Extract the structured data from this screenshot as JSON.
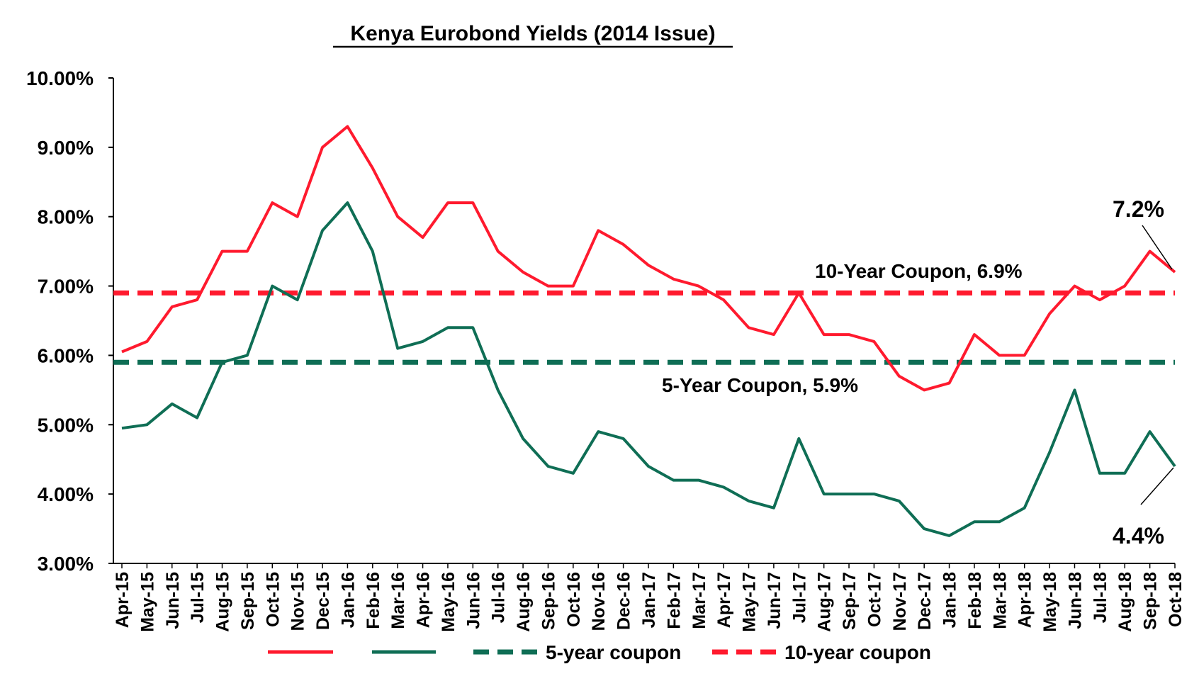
{
  "chart_data": {
    "type": "line",
    "title": "Kenya Eurobond Yields (2014 Issue)",
    "xlabel": "",
    "ylabel": "",
    "ylim": [
      3.0,
      10.0
    ],
    "yticks": [
      "3.00%",
      "4.00%",
      "5.00%",
      "6.00%",
      "7.00%",
      "8.00%",
      "9.00%",
      "10.00%"
    ],
    "ytick_values": [
      3,
      4,
      5,
      6,
      7,
      8,
      9,
      10
    ],
    "x_tick_labels": [
      "Apr-15",
      "May-15",
      "Jun-15",
      "Jul-15",
      "Aug-15",
      "Sep-15",
      "Oct-15",
      "Nov-15",
      "Dec-15",
      "Jan-16",
      "Feb-16",
      "Mar-16",
      "Apr-16",
      "May-16",
      "Jun-16",
      "Jul-16",
      "Aug-16",
      "Sep-16",
      "Oct-16",
      "Nov-16",
      "Dec-16",
      "Jan-17",
      "Feb-17",
      "Mar-17",
      "Apr-17",
      "May-17",
      "Jun-17",
      "Jul-17",
      "Aug-17",
      "Sep-17",
      "Oct-17",
      "Nov-17",
      "Dec-17",
      "Jan-18",
      "Feb-18",
      "Mar-18",
      "Apr-18",
      "May-18",
      "Jun-18",
      "Jul-18",
      "Aug-18",
      "Sep-18",
      "Oct-18"
    ],
    "grid": false,
    "legend": "bottom",
    "series": [
      {
        "name": "",
        "color": "#ff1a2e",
        "style": "solid",
        "values": [
          6.05,
          6.2,
          6.7,
          6.8,
          7.5,
          7.5,
          8.2,
          8.0,
          9.0,
          9.3,
          8.7,
          8.0,
          7.7,
          8.2,
          8.2,
          7.5,
          7.2,
          7.0,
          7.0,
          7.8,
          7.6,
          7.3,
          7.1,
          7.0,
          6.8,
          6.4,
          6.3,
          6.9,
          6.3,
          6.3,
          6.2,
          5.7,
          5.5,
          5.6,
          6.3,
          6.0,
          6.0,
          6.6,
          7.0,
          6.8,
          7.0,
          7.5,
          7.2
        ]
      },
      {
        "name": "",
        "color": "#0f6e55",
        "style": "solid",
        "values": [
          4.95,
          5.0,
          5.3,
          5.1,
          5.9,
          6.0,
          7.0,
          6.8,
          7.8,
          8.2,
          7.5,
          6.1,
          6.2,
          6.4,
          6.4,
          5.5,
          4.8,
          4.4,
          4.3,
          4.9,
          4.8,
          4.4,
          4.2,
          4.2,
          4.1,
          3.9,
          3.8,
          4.8,
          4.0,
          4.0,
          4.0,
          3.9,
          3.5,
          3.4,
          3.6,
          3.6,
          3.8,
          4.6,
          5.5,
          4.3,
          4.3,
          4.9,
          4.4
        ]
      },
      {
        "name": "5-year coupon",
        "color": "#0f6e55",
        "style": "dashed",
        "values": [
          5.9,
          5.9,
          5.9,
          5.9,
          5.9,
          5.9,
          5.9,
          5.9,
          5.9,
          5.9,
          5.9,
          5.9,
          5.9,
          5.9,
          5.9,
          5.9,
          5.9,
          5.9,
          5.9,
          5.9,
          5.9,
          5.9,
          5.9,
          5.9,
          5.9,
          5.9,
          5.9,
          5.9,
          5.9,
          5.9,
          5.9,
          5.9,
          5.9,
          5.9,
          5.9,
          5.9,
          5.9,
          5.9,
          5.9,
          5.9,
          5.9,
          5.9,
          5.9
        ]
      },
      {
        "name": "10-year coupon",
        "color": "#ff1a2e",
        "style": "dashed",
        "values": [
          6.9,
          6.9,
          6.9,
          6.9,
          6.9,
          6.9,
          6.9,
          6.9,
          6.9,
          6.9,
          6.9,
          6.9,
          6.9,
          6.9,
          6.9,
          6.9,
          6.9,
          6.9,
          6.9,
          6.9,
          6.9,
          6.9,
          6.9,
          6.9,
          6.9,
          6.9,
          6.9,
          6.9,
          6.9,
          6.9,
          6.9,
          6.9,
          6.9,
          6.9,
          6.9,
          6.9,
          6.9,
          6.9,
          6.9,
          6.9,
          6.9,
          6.9,
          6.9
        ]
      }
    ],
    "annotations": {
      "ten_year_coupon": "10-Year Coupon, 6.9%",
      "five_year_coupon": "5-Year Coupon, 5.9%",
      "latest_ten": "7.2%",
      "latest_five": "4.4%"
    }
  }
}
